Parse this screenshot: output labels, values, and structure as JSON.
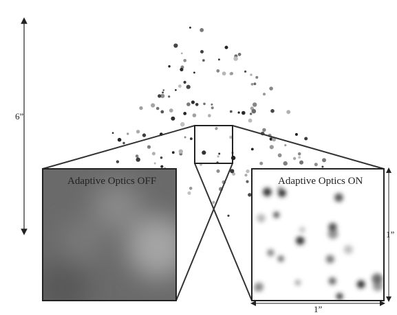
{
  "scale": {
    "height_label": "6”",
    "panel_height_label": "1”",
    "panel_width_label": "1”"
  },
  "panels": [
    {
      "title": "Adaptive Optics OFF"
    },
    {
      "title": "Adaptive Optics ON"
    }
  ]
}
